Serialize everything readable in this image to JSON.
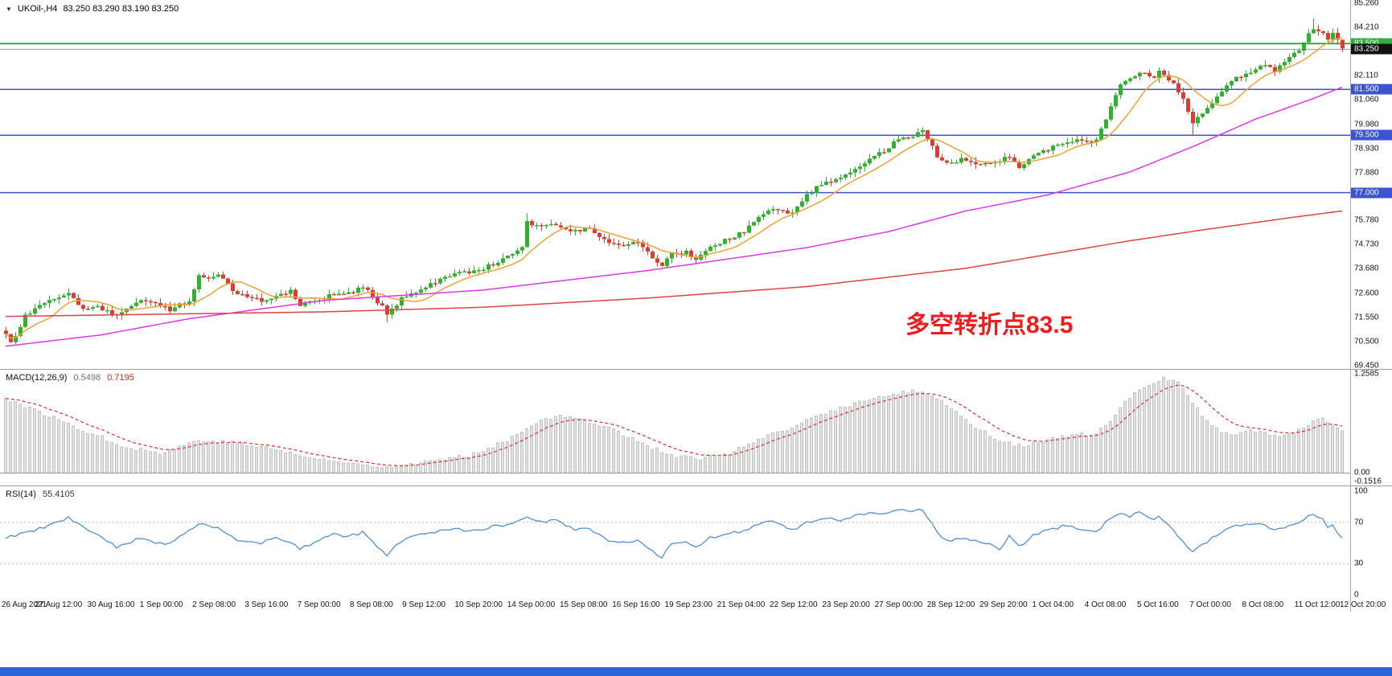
{
  "header": {
    "collapse_icon": "▼",
    "symbol": "UKOil-,H4",
    "ohlc": "83.250 83.290 83.190 83.250"
  },
  "colors": {
    "bull": "#2db32d",
    "bear": "#e23a2e",
    "ma_fast": "#eea236",
    "ma_mid": "#e235e2",
    "ma_slow": "#dd4444",
    "macd_hist_fill": "#e3e3e3",
    "macd_hist_stroke": "#c2c2c2",
    "macd_signal": "#d93025",
    "macd_zero_line": "#8f8f8f",
    "rsi_line": "#4f8fd4",
    "rsi_level_line": "#b8b8b8",
    "level_green": "#2fae3e",
    "level_blue": "#3a55cf",
    "annotation": "#ee1c1c",
    "taskbar": "#2b63d8"
  },
  "time_axis": {
    "labels": [
      "26 Aug 2021",
      "27 Aug 12:00",
      "30 Aug 16:00",
      "1 Sep 00:00",
      "2 Sep 08:00",
      "3 Sep 16:00",
      "7 Sep 00:00",
      "8 Sep 08:00",
      "9 Sep 12:00",
      "10 Sep 20:00",
      "14 Sep 00:00",
      "15 Sep 08:00",
      "16 Sep 16:00",
      "19 Sep 23:00",
      "21 Sep 04:00",
      "22 Sep 12:00",
      "23 Sep 20:00",
      "27 Sep 00:00",
      "28 Sep 12:00",
      "29 Sep 20:00",
      "1 Oct 04:00",
      "4 Oct 08:00",
      "5 Oct 16:00",
      "7 Oct 00:00",
      "8 Oct 08:00",
      "11 Oct 12:00",
      "12 Oct 20:00"
    ]
  },
  "chart_data": [
    {
      "type": "candlestick",
      "title": "UKOil-,H4",
      "timeframe": "H4",
      "n_bars": 278,
      "y_range": [
        69.45,
        85.26
      ],
      "y_ticks": [
        [
          85.26,
          "85.260"
        ],
        [
          84.21,
          "84.210"
        ],
        [
          82.11,
          "82.110"
        ],
        [
          81.06,
          "81.060"
        ],
        [
          79.98,
          "79.980"
        ],
        [
          78.93,
          "78.930"
        ],
        [
          77.88,
          "77.880"
        ],
        [
          76.83,
          "76.830"
        ],
        [
          75.78,
          "75.780"
        ],
        [
          74.73,
          "74.730"
        ],
        [
          73.68,
          "73.680"
        ],
        [
          72.6,
          "72.600"
        ],
        [
          71.55,
          "71.550"
        ],
        [
          70.5,
          "70.500"
        ],
        [
          69.45,
          "69.450"
        ]
      ],
      "last_ohlc": {
        "open": 83.25,
        "high": 83.29,
        "low": 83.19,
        "close": 83.25
      },
      "annotation": {
        "text": "多空转折点83.5"
      },
      "levels": [
        {
          "name": "resistance-level-badge-83500",
          "price": 83.5,
          "label": "83.500",
          "line_color": "#2fae3e",
          "badge_bg": "#2fae3e",
          "width": 2,
          "interactable": true
        },
        {
          "name": "current-price-badge",
          "price": 83.25,
          "label": "83.250",
          "line_color": "#9a9a9a",
          "badge_bg": "#111111",
          "width": 1,
          "interactable": false
        },
        {
          "name": "support-level-badge-81500",
          "price": 81.5,
          "label": "81.500",
          "line_color": "#3a55cf",
          "badge_bg": "#3a55cf",
          "width": 1.5,
          "interactable": true
        },
        {
          "name": "support-level-badge-79500",
          "price": 79.5,
          "label": "79.500",
          "line_color": "#3a55cf",
          "badge_bg": "#3a55cf",
          "width": 1.5,
          "interactable": true
        },
        {
          "name": "support-level-badge-77000",
          "price": 77.0,
          "label": "77.000",
          "line_color": "#3a55cf",
          "badge_bg": "#3a55cf",
          "width": 1.5,
          "interactable": true
        }
      ],
      "close_path": [
        [
          0,
          70.9
        ],
        [
          1,
          70.4
        ],
        [
          4,
          71.6
        ],
        [
          9,
          72.3
        ],
        [
          13,
          72.6
        ],
        [
          16,
          71.9
        ],
        [
          19,
          72.0
        ],
        [
          23,
          71.6
        ],
        [
          26,
          72.1
        ],
        [
          29,
          72.3
        ],
        [
          34,
          71.9
        ],
        [
          38,
          72.3
        ],
        [
          40,
          73.4
        ],
        [
          42,
          73.2
        ],
        [
          44,
          73.45
        ],
        [
          48,
          72.5
        ],
        [
          49,
          72.6
        ],
        [
          53,
          72.3
        ],
        [
          56,
          72.5
        ],
        [
          59,
          72.7
        ],
        [
          61,
          72.1
        ],
        [
          65,
          72.3
        ],
        [
          68,
          72.6
        ],
        [
          71,
          72.6
        ],
        [
          74,
          72.9
        ],
        [
          78,
          72.0
        ],
        [
          79,
          71.6
        ],
        [
          82,
          72.4
        ],
        [
          84,
          72.6
        ],
        [
          88,
          73.0
        ],
        [
          91,
          73.3
        ],
        [
          94,
          73.5
        ],
        [
          98,
          73.6
        ],
        [
          101,
          73.9
        ],
        [
          104,
          74.2
        ],
        [
          107,
          74.6
        ],
        [
          108,
          75.7
        ],
        [
          111,
          75.5
        ],
        [
          114,
          75.6
        ],
        [
          118,
          75.3
        ],
        [
          121,
          75.45
        ],
        [
          124,
          74.9
        ],
        [
          128,
          74.7
        ],
        [
          131,
          74.9
        ],
        [
          134,
          74.1
        ],
        [
          136,
          73.8
        ],
        [
          138,
          74.3
        ],
        [
          141,
          74.4
        ],
        [
          143,
          74.1
        ],
        [
          146,
          74.6
        ],
        [
          149,
          74.9
        ],
        [
          153,
          75.3
        ],
        [
          156,
          75.9
        ],
        [
          159,
          76.3
        ],
        [
          163,
          76.1
        ],
        [
          166,
          76.9
        ],
        [
          169,
          77.4
        ],
        [
          173,
          77.6
        ],
        [
          176,
          78.0
        ],
        [
          179,
          78.5
        ],
        [
          183,
          78.95
        ],
        [
          185,
          79.4
        ],
        [
          188,
          79.5
        ],
        [
          190,
          79.8
        ],
        [
          193,
          78.6
        ],
        [
          195,
          78.25
        ],
        [
          198,
          78.45
        ],
        [
          201,
          78.3
        ],
        [
          204,
          78.25
        ],
        [
          208,
          78.6
        ],
        [
          210,
          78.15
        ],
        [
          213,
          78.6
        ],
        [
          216,
          78.9
        ],
        [
          219,
          79.2
        ],
        [
          223,
          79.3
        ],
        [
          226,
          79.25
        ],
        [
          229,
          80.7
        ],
        [
          231,
          81.7
        ],
        [
          233,
          82.0
        ],
        [
          235,
          82.3
        ],
        [
          238,
          82.05
        ],
        [
          239,
          82.3
        ],
        [
          242,
          81.8
        ],
        [
          244,
          81.1
        ],
        [
          246,
          80.1
        ],
        [
          248,
          80.5
        ],
        [
          250,
          80.95
        ],
        [
          253,
          81.6
        ],
        [
          255,
          82.0
        ],
        [
          258,
          82.3
        ],
        [
          260,
          82.55
        ],
        [
          263,
          82.35
        ],
        [
          265,
          82.7
        ],
        [
          268,
          83.2
        ],
        [
          270,
          83.9
        ],
        [
          271,
          84.15
        ],
        [
          273,
          84.0
        ],
        [
          274,
          83.75
        ],
        [
          275,
          83.95
        ],
        [
          276,
          83.6
        ],
        [
          277,
          83.25
        ]
      ],
      "high_overrides": [
        [
          108,
          76.1
        ],
        [
          271,
          84.6
        ]
      ],
      "low_overrides": [
        [
          246,
          79.5
        ],
        [
          79,
          71.35
        ]
      ],
      "moving_averages": [
        {
          "name": "ma-fast-orange",
          "color": "#eea236",
          "derive": "sma",
          "period": 10
        },
        {
          "name": "ma-mid-magenta",
          "color": "#e235e2",
          "path": [
            [
              0,
              70.3
            ],
            [
              20,
              70.8
            ],
            [
              38,
              71.5
            ],
            [
              66,
              72.3
            ],
            [
              99,
              72.75
            ],
            [
              133,
              73.6
            ],
            [
              166,
              74.6
            ],
            [
              183,
              75.3
            ],
            [
              199,
              76.2
            ],
            [
              216,
              76.9
            ],
            [
              233,
              77.9
            ],
            [
              246,
              79.0
            ],
            [
              259,
              80.2
            ],
            [
              271,
              81.1
            ],
            [
              277,
              81.6
            ]
          ]
        },
        {
          "name": "ma-slow-red",
          "color": "#dd4444",
          "path": [
            [
              0,
              71.6
            ],
            [
              33,
              71.7
            ],
            [
              66,
              71.8
            ],
            [
              99,
              72.0
            ],
            [
              133,
              72.4
            ],
            [
              166,
              72.9
            ],
            [
              199,
              73.7
            ],
            [
              216,
              74.3
            ],
            [
              233,
              74.9
            ],
            [
              249,
              75.4
            ],
            [
              266,
              75.9
            ],
            [
              277,
              76.2
            ]
          ]
        }
      ]
    },
    {
      "type": "macd",
      "name": "MACD(12,26,9)",
      "params": [
        12,
        26,
        9
      ],
      "main_value": "0.5498",
      "signal_value": "0.7195",
      "y_max": 1.2585,
      "y_min": -0.1516,
      "y_ticks": [
        [
          1.2585,
          "1.2585"
        ],
        [
          0,
          "0.00"
        ],
        [
          -0.1516,
          "-0.1516"
        ]
      ],
      "macd_path": [
        [
          0,
          0.95
        ],
        [
          8,
          0.75
        ],
        [
          16,
          0.55
        ],
        [
          24,
          0.35
        ],
        [
          32,
          0.25
        ],
        [
          40,
          0.42
        ],
        [
          48,
          0.38
        ],
        [
          56,
          0.3
        ],
        [
          64,
          0.18
        ],
        [
          72,
          0.12
        ],
        [
          80,
          0.08
        ],
        [
          88,
          0.15
        ],
        [
          96,
          0.22
        ],
        [
          104,
          0.42
        ],
        [
          109,
          0.62
        ],
        [
          114,
          0.72
        ],
        [
          120,
          0.68
        ],
        [
          126,
          0.55
        ],
        [
          132,
          0.38
        ],
        [
          138,
          0.22
        ],
        [
          144,
          0.18
        ],
        [
          150,
          0.25
        ],
        [
          156,
          0.42
        ],
        [
          162,
          0.55
        ],
        [
          168,
          0.72
        ],
        [
          174,
          0.85
        ],
        [
          180,
          0.95
        ],
        [
          186,
          1.02
        ],
        [
          190,
          1.05
        ],
        [
          194,
          0.92
        ],
        [
          198,
          0.72
        ],
        [
          202,
          0.55
        ],
        [
          206,
          0.42
        ],
        [
          210,
          0.35
        ],
        [
          214,
          0.38
        ],
        [
          218,
          0.45
        ],
        [
          222,
          0.48
        ],
        [
          226,
          0.5
        ],
        [
          229,
          0.65
        ],
        [
          232,
          0.9
        ],
        [
          236,
          1.1
        ],
        [
          240,
          1.22
        ],
        [
          243,
          1.15
        ],
        [
          246,
          0.9
        ],
        [
          249,
          0.65
        ],
        [
          252,
          0.52
        ],
        [
          255,
          0.5
        ],
        [
          258,
          0.55
        ],
        [
          261,
          0.52
        ],
        [
          264,
          0.45
        ],
        [
          267,
          0.5
        ],
        [
          270,
          0.62
        ],
        [
          273,
          0.68
        ],
        [
          275,
          0.6
        ],
        [
          277,
          0.55
        ]
      ]
    },
    {
      "type": "rsi",
      "name": "RSI(14)",
      "period": 14,
      "value": "55.4105",
      "y_ticks": [
        [
          100,
          "100"
        ],
        [
          70,
          "70"
        ],
        [
          30,
          "30"
        ],
        [
          0,
          "0"
        ]
      ],
      "levels": [
        70,
        30
      ],
      "rsi_path": [
        [
          0,
          55
        ],
        [
          6,
          62
        ],
        [
          13,
          74
        ],
        [
          18,
          60
        ],
        [
          23,
          46
        ],
        [
          28,
          55
        ],
        [
          33,
          48
        ],
        [
          38,
          62
        ],
        [
          40,
          68
        ],
        [
          44,
          65
        ],
        [
          48,
          52
        ],
        [
          53,
          50
        ],
        [
          56,
          55
        ],
        [
          61,
          45
        ],
        [
          65,
          52
        ],
        [
          68,
          58
        ],
        [
          71,
          56
        ],
        [
          74,
          60
        ],
        [
          78,
          42
        ],
        [
          79,
          38
        ],
        [
          82,
          52
        ],
        [
          85,
          58
        ],
        [
          88,
          60
        ],
        [
          91,
          62
        ],
        [
          94,
          63
        ],
        [
          98,
          62
        ],
        [
          101,
          66
        ],
        [
          104,
          68
        ],
        [
          108,
          76
        ],
        [
          111,
          70
        ],
        [
          114,
          72
        ],
        [
          118,
          62
        ],
        [
          121,
          64
        ],
        [
          124,
          54
        ],
        [
          128,
          50
        ],
        [
          131,
          52
        ],
        [
          134,
          42
        ],
        [
          136,
          37
        ],
        [
          138,
          48
        ],
        [
          141,
          50
        ],
        [
          143,
          45
        ],
        [
          146,
          55
        ],
        [
          149,
          58
        ],
        [
          153,
          62
        ],
        [
          156,
          68
        ],
        [
          159,
          72
        ],
        [
          163,
          62
        ],
        [
          166,
          70
        ],
        [
          169,
          74
        ],
        [
          173,
          72
        ],
        [
          176,
          76
        ],
        [
          179,
          78
        ],
        [
          183,
          80
        ],
        [
          186,
          82
        ],
        [
          188,
          80
        ],
        [
          190,
          83
        ],
        [
          193,
          60
        ],
        [
          195,
          52
        ],
        [
          198,
          55
        ],
        [
          201,
          52
        ],
        [
          204,
          48
        ],
        [
          206,
          44
        ],
        [
          208,
          56
        ],
        [
          210,
          46
        ],
        [
          213,
          58
        ],
        [
          216,
          62
        ],
        [
          219,
          66
        ],
        [
          223,
          64
        ],
        [
          226,
          60
        ],
        [
          229,
          74
        ],
        [
          231,
          78
        ],
        [
          233,
          76
        ],
        [
          235,
          80
        ],
        [
          238,
          72
        ],
        [
          239,
          75
        ],
        [
          242,
          62
        ],
        [
          244,
          52
        ],
        [
          246,
          42
        ],
        [
          248,
          48
        ],
        [
          250,
          55
        ],
        [
          253,
          62
        ],
        [
          255,
          66
        ],
        [
          258,
          68
        ],
        [
          260,
          70
        ],
        [
          263,
          62
        ],
        [
          265,
          64
        ],
        [
          268,
          70
        ],
        [
          270,
          76
        ],
        [
          271,
          78
        ],
        [
          273,
          72
        ],
        [
          274,
          66
        ],
        [
          275,
          68
        ],
        [
          276,
          60
        ],
        [
          277,
          55.4
        ]
      ]
    }
  ]
}
